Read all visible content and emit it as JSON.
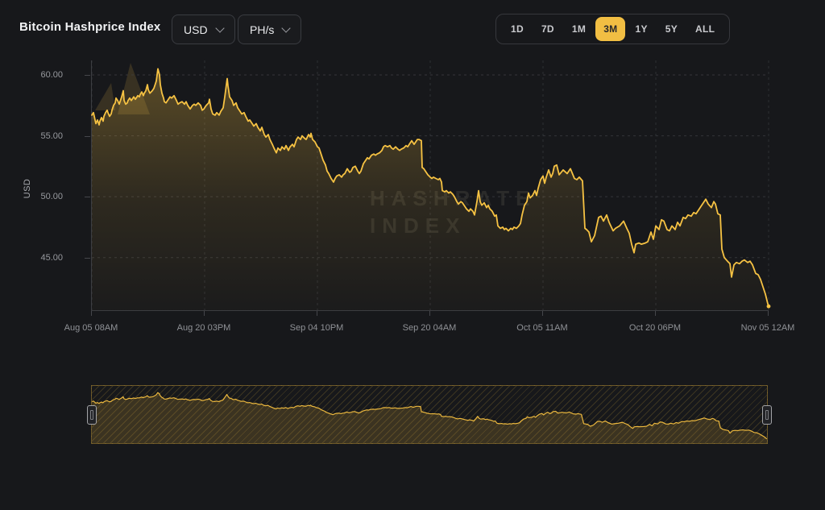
{
  "header": {
    "title": "Bitcoin Hashprice Index",
    "currency_selector": {
      "value": "USD"
    },
    "unit_selector": {
      "value": "PH/s"
    },
    "range_buttons": [
      "1D",
      "7D",
      "1M",
      "3M",
      "1Y",
      "5Y",
      "ALL"
    ],
    "active_range": "3M"
  },
  "chart": {
    "y_axis_label": "USD",
    "y_tick_labels": [
      "60.00",
      "55.00",
      "50.00",
      "45.00"
    ],
    "x_tick_labels": [
      "Aug 05 08AM",
      "Aug 20 03PM",
      "Sep 04 10PM",
      "Sep 20 04AM",
      "Oct 05 11AM",
      "Oct 20 06PM",
      "Nov 05 12AM"
    ],
    "watermark": {
      "line1": "HASHRATE",
      "line2": "INDEX"
    }
  },
  "colors": {
    "background": "#17181B",
    "accent_line": "#F6C243",
    "active_button_bg": "#F1BE43",
    "grid": "#3E3F43",
    "tick_text": "#97999E"
  },
  "chart_data": {
    "type": "line",
    "title": "Bitcoin Hashprice Index",
    "ylabel": "USD",
    "selected_range": "3M",
    "x_range": [
      "Aug 05 08AM",
      "Nov 05 12AM"
    ],
    "x_tick_labels": [
      "Aug 05 08AM",
      "Aug 20 03PM",
      "Sep 04 10PM",
      "Sep 20 04AM",
      "Oct 05 11AM",
      "Oct 20 06PM",
      "Nov 05 12AM"
    ],
    "y_ticks": [
      60,
      55,
      50,
      45
    ],
    "ylim": [
      40.7,
      61.2
    ],
    "grid": "dashed",
    "legend": "none",
    "points": [
      [
        0,
        56.7
      ],
      [
        2,
        56.9
      ],
      [
        4,
        56.3
      ],
      [
        5,
        56.0
      ],
      [
        7,
        56.3
      ],
      [
        9,
        55.9
      ],
      [
        10,
        56.2
      ],
      [
        12,
        56.5
      ],
      [
        14,
        56.2
      ],
      [
        15,
        56.6
      ],
      [
        17,
        56.9
      ],
      [
        19,
        57.1
      ],
      [
        20,
        56.9
      ],
      [
        22,
        56.6
      ],
      [
        24,
        56.8
      ],
      [
        25,
        57.1
      ],
      [
        27,
        57.5
      ],
      [
        29,
        57.7
      ],
      [
        30,
        58.1
      ],
      [
        32,
        57.9
      ],
      [
        34,
        57.6
      ],
      [
        35,
        57.8
      ],
      [
        37,
        58.2
      ],
      [
        39,
        58.7
      ],
      [
        40,
        57.9
      ],
      [
        42,
        57.6
      ],
      [
        44,
        57.7
      ],
      [
        45,
        57.9
      ],
      [
        47,
        58.1
      ],
      [
        49,
        57.9
      ],
      [
        50,
        58.0
      ],
      [
        52,
        58.2
      ],
      [
        54,
        58.0
      ],
      [
        55,
        58.1
      ],
      [
        57,
        58.3
      ],
      [
        59,
        58.2
      ],
      [
        60,
        58.4
      ],
      [
        62,
        58.6
      ],
      [
        64,
        58.3
      ],
      [
        65,
        58.5
      ],
      [
        67,
        58.7
      ],
      [
        69,
        59.2
      ],
      [
        70,
        58.8
      ],
      [
        72,
        58.5
      ],
      [
        75,
        58.7
      ],
      [
        77,
        58.9
      ],
      [
        79,
        59.3
      ],
      [
        80,
        59.5
      ],
      [
        82,
        60.5
      ],
      [
        84,
        60.0
      ],
      [
        85,
        59.2
      ],
      [
        87,
        58.5
      ],
      [
        89,
        58.1
      ],
      [
        90,
        57.8
      ],
      [
        92,
        57.7
      ],
      [
        94,
        57.9
      ],
      [
        97,
        58.2
      ],
      [
        99,
        58.1
      ],
      [
        102,
        58.3
      ],
      [
        105,
        57.9
      ],
      [
        107,
        57.6
      ],
      [
        109,
        57.7
      ],
      [
        112,
        57.8
      ],
      [
        115,
        57.6
      ],
      [
        117,
        57.8
      ],
      [
        119,
        57.5
      ],
      [
        122,
        57.2
      ],
      [
        125,
        57.5
      ],
      [
        127,
        57.6
      ],
      [
        129,
        57.5
      ],
      [
        132,
        57.7
      ],
      [
        135,
        57.5
      ],
      [
        137,
        57.1
      ],
      [
        139,
        57.2
      ],
      [
        142,
        57.5
      ],
      [
        145,
        57.7
      ],
      [
        146,
        58.0
      ],
      [
        148,
        57.2
      ],
      [
        150,
        56.8
      ],
      [
        153,
        56.7
      ],
      [
        155,
        56.9
      ],
      [
        158,
        56.7
      ],
      [
        160,
        57.0
      ],
      [
        163,
        57.3
      ],
      [
        165,
        58.2
      ],
      [
        168,
        59.7
      ],
      [
        169,
        59.1
      ],
      [
        171,
        58.2
      ],
      [
        174,
        57.9
      ],
      [
        176,
        57.5
      ],
      [
        179,
        57.7
      ],
      [
        181,
        57.3
      ],
      [
        184,
        57.0
      ],
      [
        186,
        56.8
      ],
      [
        189,
        56.9
      ],
      [
        191,
        56.6
      ],
      [
        194,
        56.2
      ],
      [
        196,
        56.3
      ],
      [
        199,
        56.0
      ],
      [
        201,
        55.8
      ],
      [
        204,
        56.0
      ],
      [
        206,
        55.7
      ],
      [
        209,
        55.4
      ],
      [
        211,
        55.7
      ],
      [
        214,
        55.1
      ],
      [
        216,
        54.9
      ],
      [
        219,
        55.1
      ],
      [
        221,
        54.7
      ],
      [
        224,
        54.3
      ],
      [
        226,
        54.0
      ],
      [
        229,
        53.6
      ],
      [
        231,
        54.0
      ],
      [
        234,
        53.8
      ],
      [
        236,
        54.1
      ],
      [
        239,
        53.9
      ],
      [
        241,
        54.2
      ],
      [
        244,
        53.8
      ],
      [
        246,
        54.1
      ],
      [
        249,
        54.3
      ],
      [
        251,
        54.1
      ],
      [
        254,
        54.7
      ],
      [
        256,
        54.9
      ],
      [
        259,
        54.7
      ],
      [
        261,
        55.0
      ],
      [
        264,
        54.8
      ],
      [
        266,
        54.7
      ],
      [
        269,
        55.1
      ],
      [
        271,
        54.9
      ],
      [
        272,
        55.2
      ],
      [
        274,
        54.7
      ],
      [
        277,
        54.5
      ],
      [
        280,
        54.1
      ],
      [
        282,
        54.0
      ],
      [
        284,
        53.6
      ],
      [
        287,
        53.0
      ],
      [
        290,
        52.6
      ],
      [
        292,
        52.1
      ],
      [
        294,
        51.9
      ],
      [
        297,
        51.5
      ],
      [
        300,
        51.2
      ],
      [
        302,
        51.5
      ],
      [
        304,
        51.7
      ],
      [
        307,
        51.8
      ],
      [
        310,
        51.6
      ],
      [
        312,
        51.8
      ],
      [
        314,
        51.9
      ],
      [
        317,
        52.3
      ],
      [
        320,
        52.0
      ],
      [
        322,
        52.1
      ],
      [
        324,
        52.4
      ],
      [
        327,
        52.5
      ],
      [
        330,
        52.1
      ],
      [
        332,
        51.9
      ],
      [
        334,
        52.1
      ],
      [
        337,
        52.7
      ],
      [
        340,
        53.0
      ],
      [
        342,
        53.2
      ],
      [
        344,
        53.1
      ],
      [
        347,
        53.4
      ],
      [
        350,
        53.5
      ],
      [
        352,
        53.4
      ],
      [
        354,
        53.5
      ],
      [
        357,
        53.6
      ],
      [
        360,
        53.8
      ],
      [
        362,
        54.1
      ],
      [
        364,
        54.2
      ],
      [
        367,
        54.1
      ],
      [
        370,
        54.2
      ],
      [
        372,
        54.0
      ],
      [
        374,
        53.9
      ],
      [
        377,
        54.1
      ],
      [
        380,
        53.9
      ],
      [
        382,
        53.8
      ],
      [
        384,
        53.9
      ],
      [
        387,
        54.0
      ],
      [
        390,
        54.2
      ],
      [
        392,
        54.1
      ],
      [
        394,
        54.3
      ],
      [
        397,
        54.6
      ],
      [
        400,
        54.3
      ],
      [
        402,
        54.5
      ],
      [
        404,
        54.7
      ],
      [
        406,
        54.7
      ],
      [
        409,
        54.6
      ],
      [
        410,
        52.4
      ],
      [
        412,
        52.3
      ],
      [
        414,
        52.1
      ],
      [
        417,
        51.8
      ],
      [
        420,
        51.6
      ],
      [
        422,
        51.5
      ],
      [
        424,
        51.6
      ],
      [
        427,
        51.5
      ],
      [
        430,
        51.4
      ],
      [
        432,
        51.5
      ],
      [
        434,
        51.2
      ],
      [
        435,
        50.5
      ],
      [
        438,
        50.4
      ],
      [
        440,
        50.5
      ],
      [
        443,
        50.3
      ],
      [
        445,
        50.4
      ],
      [
        448,
        50.2
      ],
      [
        450,
        50.0
      ],
      [
        453,
        49.6
      ],
      [
        455,
        49.4
      ],
      [
        458,
        49.6
      ],
      [
        460,
        49.5
      ],
      [
        463,
        49.2
      ],
      [
        465,
        49.0
      ],
      [
        468,
        48.8
      ],
      [
        470,
        49.0
      ],
      [
        473,
        48.8
      ],
      [
        475,
        48.5
      ],
      [
        478,
        49.6
      ],
      [
        480,
        50.5
      ],
      [
        482,
        49.6
      ],
      [
        484,
        49.3
      ],
      [
        487,
        49.5
      ],
      [
        490,
        49.1
      ],
      [
        492,
        49.3
      ],
      [
        494,
        49.0
      ],
      [
        497,
        48.8
      ],
      [
        500,
        48.4
      ],
      [
        502,
        48.5
      ],
      [
        504,
        47.6
      ],
      [
        507,
        47.4
      ],
      [
        510,
        47.5
      ],
      [
        512,
        47.3
      ],
      [
        514,
        47.4
      ],
      [
        517,
        47.2
      ],
      [
        520,
        47.4
      ],
      [
        522,
        47.3
      ],
      [
        524,
        47.5
      ],
      [
        527,
        47.4
      ],
      [
        530,
        47.6
      ],
      [
        532,
        47.8
      ],
      [
        534,
        48.5
      ],
      [
        537,
        49.3
      ],
      [
        540,
        49.6
      ],
      [
        542,
        50.3
      ],
      [
        544,
        49.9
      ],
      [
        547,
        50.1
      ],
      [
        550,
        50.5
      ],
      [
        552,
        50.1
      ],
      [
        554,
        50.7
      ],
      [
        557,
        51.4
      ],
      [
        560,
        51.7
      ],
      [
        562,
        51.1
      ],
      [
        564,
        51.6
      ],
      [
        567,
        52.2
      ],
      [
        570,
        51.6
      ],
      [
        572,
        51.9
      ],
      [
        574,
        52.5
      ],
      [
        577,
        52.6
      ],
      [
        580,
        51.8
      ],
      [
        585,
        52.2
      ],
      [
        590,
        51.9
      ],
      [
        594,
        52.3
      ],
      [
        599,
        51.5
      ],
      [
        602,
        51.4
      ],
      [
        605,
        51.6
      ],
      [
        609,
        51.3
      ],
      [
        612,
        47.4
      ],
      [
        614,
        47.3
      ],
      [
        617,
        47.1
      ],
      [
        620,
        46.3
      ],
      [
        624,
        46.8
      ],
      [
        629,
        48.3
      ],
      [
        632,
        48.4
      ],
      [
        635,
        48.0
      ],
      [
        639,
        48.5
      ],
      [
        642,
        47.9
      ],
      [
        647,
        47.2
      ],
      [
        650,
        47.4
      ],
      [
        655,
        47.6
      ],
      [
        660,
        48.0
      ],
      [
        664,
        47.4
      ],
      [
        667,
        47.0
      ],
      [
        670,
        46.1
      ],
      [
        673,
        45.4
      ],
      [
        675,
        46.1
      ],
      [
        679,
        46.2
      ],
      [
        682,
        46.1
      ],
      [
        687,
        46.2
      ],
      [
        690,
        46.3
      ],
      [
        694,
        47.1
      ],
      [
        697,
        46.5
      ],
      [
        700,
        47.6
      ],
      [
        704,
        47.3
      ],
      [
        707,
        48.1
      ],
      [
        710,
        48.0
      ],
      [
        714,
        47.3
      ],
      [
        717,
        47.2
      ],
      [
        720,
        47.6
      ],
      [
        724,
        47.3
      ],
      [
        727,
        47.9
      ],
      [
        730,
        47.6
      ],
      [
        734,
        48.3
      ],
      [
        737,
        48.2
      ],
      [
        740,
        48.5
      ],
      [
        744,
        48.4
      ],
      [
        747,
        48.7
      ],
      [
        750,
        48.6
      ],
      [
        754,
        49.0
      ],
      [
        759,
        49.5
      ],
      [
        762,
        49.8
      ],
      [
        765,
        49.4
      ],
      [
        769,
        49.1
      ],
      [
        772,
        49.6
      ],
      [
        774,
        49.4
      ],
      [
        777,
        48.6
      ],
      [
        780,
        48.5
      ],
      [
        782,
        45.7
      ],
      [
        785,
        45.0
      ],
      [
        789,
        44.7
      ],
      [
        792,
        44.5
      ],
      [
        794,
        43.4
      ],
      [
        797,
        44.4
      ],
      [
        800,
        44.6
      ],
      [
        804,
        44.5
      ],
      [
        807,
        44.7
      ],
      [
        810,
        44.8
      ],
      [
        814,
        44.6
      ],
      [
        817,
        44.7
      ],
      [
        820,
        44.4
      ],
      [
        824,
        43.7
      ],
      [
        827,
        43.6
      ],
      [
        830,
        43.2
      ],
      [
        834,
        42.4
      ],
      [
        836,
        42.0
      ],
      [
        839,
        41.2
      ],
      [
        840,
        41.0
      ]
    ]
  }
}
